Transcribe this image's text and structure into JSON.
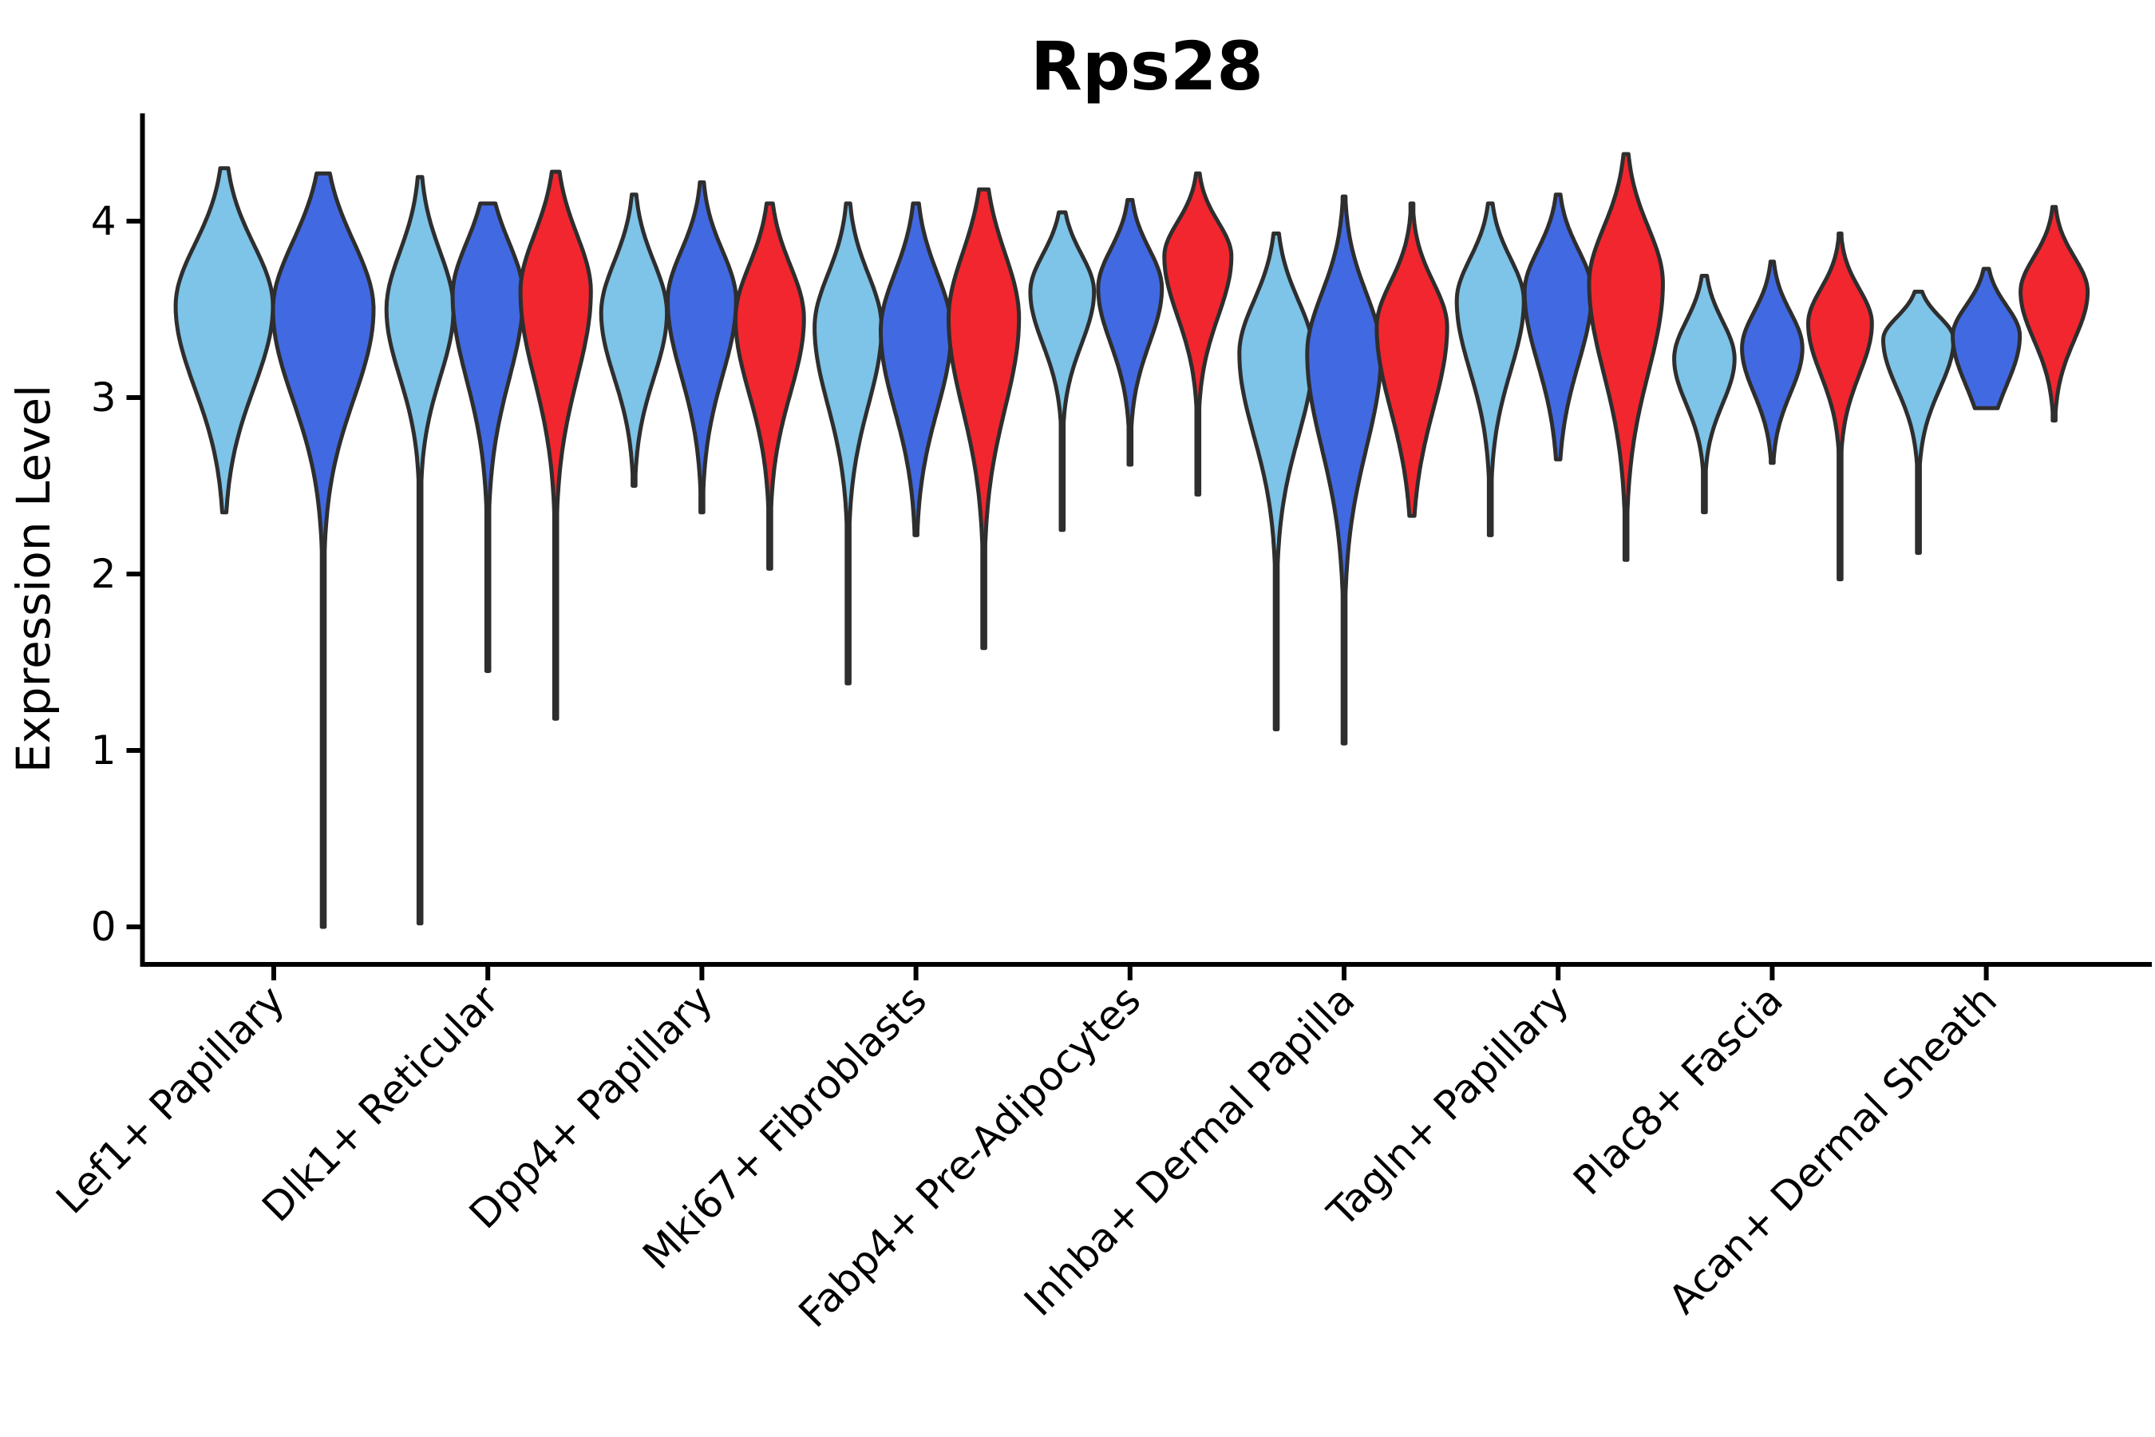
{
  "chart_data": {
    "type": "violin",
    "title": "Rps28",
    "ylabel": "Expression Level",
    "xlabel": "",
    "yticks": [
      0,
      1,
      2,
      3,
      4
    ],
    "ylim": [
      -0.16,
      4.6
    ],
    "grid": false,
    "legend_position": "none",
    "colors": {
      "edge": "#2E2E2E",
      "axis": "#000000",
      "splits": {
        "light-blue": "#7EC3E8",
        "royal-blue": "#4169E1",
        "red": "#F2262E"
      }
    },
    "groups": [
      {
        "label": "Lef1+ Papillary",
        "violins": [
          {
            "split": "light-blue",
            "top": 4.3,
            "q_hi": 3.93,
            "widest": 3.52,
            "q_lo": 2.97,
            "bottom": 2.35,
            "w": 1.45
          },
          {
            "split": "royal-blue",
            "top": 4.27,
            "q_hi": 3.95,
            "widest": 3.5,
            "q_lo": 2.9,
            "bottom": 0.0,
            "w": 1.5
          }
        ]
      },
      {
        "label": "Dlk1+ Reticular",
        "violins": [
          {
            "split": "light-blue",
            "top": 4.25,
            "q_hi": 3.88,
            "widest": 3.5,
            "q_lo": 3.05,
            "bottom": 0.02,
            "w": 1.0
          },
          {
            "split": "royal-blue",
            "top": 4.1,
            "q_hi": 3.93,
            "widest": 3.58,
            "q_lo": 3.02,
            "bottom": 1.45,
            "w": 1.05
          },
          {
            "split": "red",
            "top": 4.28,
            "q_hi": 3.98,
            "widest": 3.6,
            "q_lo": 3.02,
            "bottom": 1.18,
            "w": 1.05
          }
        ]
      },
      {
        "label": "Dpp4+ Papillary",
        "violins": [
          {
            "split": "light-blue",
            "top": 4.15,
            "q_hi": 3.82,
            "widest": 3.48,
            "q_lo": 3.05,
            "bottom": 2.5,
            "w": 0.98
          },
          {
            "split": "royal-blue",
            "top": 4.22,
            "q_hi": 3.88,
            "widest": 3.55,
            "q_lo": 3.05,
            "bottom": 2.35,
            "w": 1.02
          },
          {
            "split": "red",
            "top": 4.1,
            "q_hi": 3.8,
            "widest": 3.45,
            "q_lo": 2.95,
            "bottom": 2.03,
            "w": 1.02
          }
        ]
      },
      {
        "label": "Mki67+ Fibroblasts",
        "violins": [
          {
            "split": "light-blue",
            "top": 4.1,
            "q_hi": 3.75,
            "widest": 3.4,
            "q_lo": 2.88,
            "bottom": 1.38,
            "w": 1.0
          },
          {
            "split": "royal-blue",
            "top": 4.1,
            "q_hi": 3.76,
            "widest": 3.38,
            "q_lo": 2.85,
            "bottom": 2.22,
            "w": 1.05
          },
          {
            "split": "red",
            "top": 4.18,
            "q_hi": 3.88,
            "widest": 3.45,
            "q_lo": 2.85,
            "bottom": 1.58,
            "w": 1.05
          }
        ]
      },
      {
        "label": "Fabp4+ Pre-Adipocytes",
        "violins": [
          {
            "split": "light-blue",
            "top": 4.05,
            "q_hi": 3.85,
            "widest": 3.6,
            "q_lo": 3.25,
            "bottom": 2.25,
            "w": 0.95
          },
          {
            "split": "royal-blue",
            "top": 4.12,
            "q_hi": 3.88,
            "widest": 3.62,
            "q_lo": 3.25,
            "bottom": 2.62,
            "w": 0.95
          },
          {
            "split": "red",
            "top": 4.27,
            "q_hi": 4.03,
            "widest": 3.8,
            "q_lo": 3.4,
            "bottom": 2.45,
            "w": 1.0
          }
        ]
      },
      {
        "label": "Inhba+ Dermal Papilla",
        "violins": [
          {
            "split": "light-blue",
            "top": 3.93,
            "q_hi": 3.6,
            "widest": 3.25,
            "q_lo": 2.7,
            "bottom": 1.12,
            "w": 1.1
          },
          {
            "split": "royal-blue",
            "top": 4.14,
            "q_hi": 3.65,
            "widest": 3.25,
            "q_lo": 2.62,
            "bottom": 1.04,
            "w": 1.1
          },
          {
            "split": "red",
            "top": 4.1,
            "q_hi": 3.7,
            "widest": 3.4,
            "q_lo": 2.85,
            "bottom": 2.33,
            "w": 1.05
          }
        ]
      },
      {
        "label": "Tagln+ Papillary",
        "violins": [
          {
            "split": "light-blue",
            "top": 4.1,
            "q_hi": 3.83,
            "widest": 3.55,
            "q_lo": 3.08,
            "bottom": 2.22,
            "w": 1.0
          },
          {
            "split": "royal-blue",
            "top": 4.15,
            "q_hi": 3.88,
            "widest": 3.6,
            "q_lo": 3.12,
            "bottom": 2.65,
            "w": 1.0
          },
          {
            "split": "red",
            "top": 4.38,
            "q_hi": 4.02,
            "widest": 3.65,
            "q_lo": 3.05,
            "bottom": 2.08,
            "w": 1.1
          }
        ]
      },
      {
        "label": "Plac8+ Fascia",
        "violins": [
          {
            "split": "light-blue",
            "top": 3.69,
            "q_hi": 3.47,
            "widest": 3.22,
            "q_lo": 2.92,
            "bottom": 2.35,
            "w": 0.9
          },
          {
            "split": "royal-blue",
            "top": 3.77,
            "q_hi": 3.52,
            "widest": 3.28,
            "q_lo": 2.98,
            "bottom": 2.63,
            "w": 0.9
          },
          {
            "split": "red",
            "top": 3.93,
            "q_hi": 3.65,
            "widest": 3.42,
            "q_lo": 3.08,
            "bottom": 1.97,
            "w": 0.95
          }
        ]
      },
      {
        "label": "Acan+ Dermal Sheath",
        "violins": [
          {
            "split": "light-blue",
            "top": 3.6,
            "q_hi": 3.48,
            "widest": 3.33,
            "q_lo": 3.0,
            "bottom": 2.12,
            "w": 1.05
          },
          {
            "split": "royal-blue",
            "top": 3.73,
            "q_hi": 3.55,
            "widest": 3.35,
            "q_lo": 3.02,
            "bottom": 2.94,
            "w": 1.0
          },
          {
            "split": "red",
            "top": 4.08,
            "q_hi": 3.83,
            "widest": 3.6,
            "q_lo": 3.28,
            "bottom": 2.87,
            "w": 1.0
          }
        ]
      }
    ]
  }
}
